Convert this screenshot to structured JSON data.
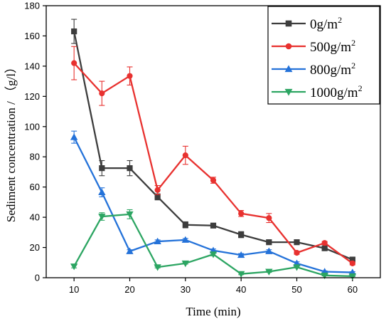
{
  "chart_data": {
    "type": "line",
    "xlabel": "Time (min)",
    "ylabel": "Sediment concentration / （g/l）",
    "xlim": [
      5,
      65
    ],
    "ylim": [
      0,
      180
    ],
    "x_ticks": [
      10,
      20,
      30,
      40,
      50,
      60
    ],
    "y_ticks": [
      0,
      20,
      40,
      60,
      80,
      100,
      120,
      140,
      160,
      180
    ],
    "x": [
      10,
      15,
      20,
      25,
      30,
      35,
      40,
      45,
      50,
      55,
      60
    ],
    "grid": false,
    "legend_position": "top-right",
    "series": [
      {
        "name": "0g/m2",
        "legend_base": "0g/m",
        "legend_sup": "2",
        "color": "#3d3d3d",
        "marker": "square",
        "values": [
          163,
          72.5,
          72.5,
          53.5,
          35,
          34.5,
          28.5,
          23.5,
          23.5,
          19.5,
          12
        ],
        "errors": [
          8,
          5,
          5,
          2,
          2,
          1,
          2,
          1,
          1,
          1.5,
          1
        ]
      },
      {
        "name": "500g/m2",
        "legend_base": "500g/m",
        "legend_sup": "2",
        "color": "#e8312f",
        "marker": "circle",
        "values": [
          142,
          122,
          133.5,
          58,
          81,
          64.5,
          42.5,
          39.5,
          16.5,
          23,
          9.5
        ],
        "errors": [
          11,
          8,
          6,
          3,
          6,
          2,
          2,
          3,
          1,
          1,
          1
        ]
      },
      {
        "name": "800g/m2",
        "legend_base": "800g/m",
        "legend_sup": "2",
        "color": "#2472d9",
        "marker": "triangle-up",
        "values": [
          93,
          56.5,
          17.5,
          24,
          25,
          18,
          15,
          17.5,
          9.5,
          4,
          3.5
        ],
        "errors": [
          4,
          3,
          1,
          1,
          1,
          1,
          1,
          1,
          1,
          0.5,
          0.5
        ]
      },
      {
        "name": "1000g/m2",
        "legend_base": "1000g/m",
        "legend_sup": "2",
        "color": "#2ca562",
        "marker": "triangle-down",
        "values": [
          7.5,
          40.5,
          42,
          7,
          9.5,
          15.5,
          2.5,
          4,
          7,
          1.5,
          1
        ],
        "errors": [
          1,
          2.5,
          3,
          0.5,
          0.5,
          1,
          0.5,
          0.5,
          0.5,
          0.3,
          0.3
        ]
      }
    ]
  }
}
